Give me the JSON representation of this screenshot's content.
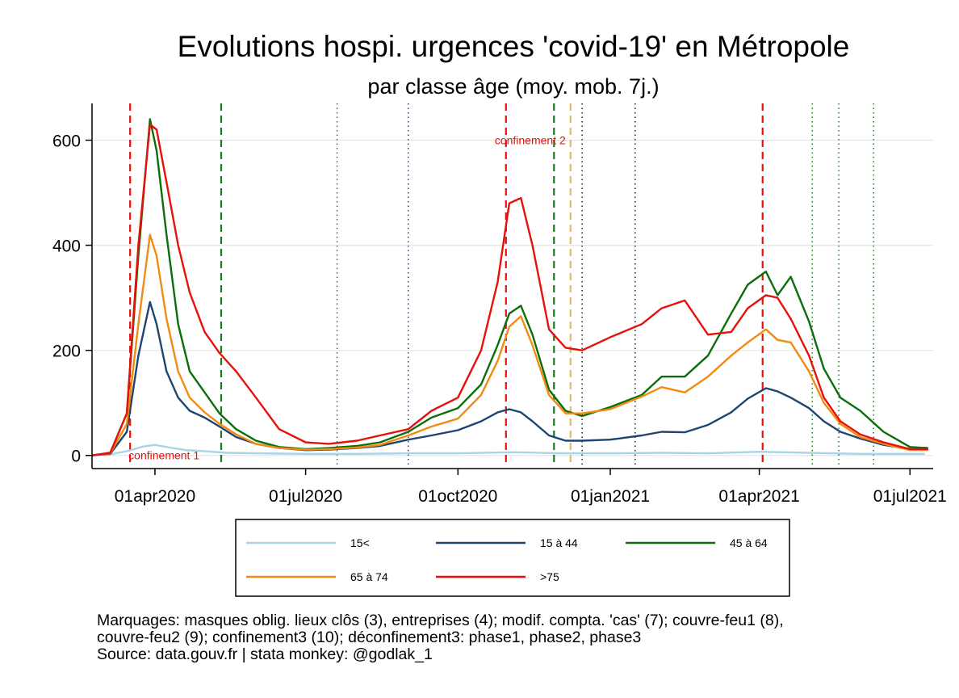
{
  "chart_data": {
    "type": "line",
    "title": "Evolutions hospi. urgences 'covid-19' en Métropole",
    "subtitle": "par classe âge (moy. mob. 7j.)",
    "ylim": [
      -25,
      670
    ],
    "yticks": [
      0,
      200,
      400,
      600
    ],
    "x_range": [
      "2020-02-23",
      "2021-07-15"
    ],
    "xticks": [
      "2020-04-01",
      "2020-07-01",
      "2020-10-01",
      "2021-01-01",
      "2021-04-01",
      "2021-07-01"
    ],
    "xtick_labels": [
      "01apr2020",
      "01jul2020",
      "01oct2020",
      "01jan2021",
      "01apr2021",
      "01jul2021"
    ],
    "grid": true,
    "legend_position": "bottom",
    "vlines": [
      {
        "date": "2020-03-17",
        "color": "#e8100a",
        "style": "dashed"
      },
      {
        "date": "2020-05-11",
        "color": "#1a7a1a",
        "style": "dashed"
      },
      {
        "date": "2020-07-20",
        "color": "#555577",
        "style": "dotted"
      },
      {
        "date": "2020-09-01",
        "color": "#3333aa",
        "style": "dotted"
      },
      {
        "date": "2020-10-30",
        "color": "#e8100a",
        "style": "dashed"
      },
      {
        "date": "2020-11-28",
        "color": "#1a7a1a",
        "style": "dashed"
      },
      {
        "date": "2020-12-08",
        "color": "#e0bb66",
        "style": "dashed"
      },
      {
        "date": "2020-12-15",
        "color": "#222222",
        "style": "dotted"
      },
      {
        "date": "2021-01-16",
        "color": "#222222",
        "style": "dotted"
      },
      {
        "date": "2021-04-03",
        "color": "#e8100a",
        "style": "dashed"
      },
      {
        "date": "2021-05-03",
        "color": "#1a7a1a",
        "style": "dotted"
      },
      {
        "date": "2021-05-19",
        "color": "#1a7a1a",
        "style": "dotted"
      },
      {
        "date": "2021-06-09",
        "color": "#1a7a1a",
        "style": "dotted"
      }
    ],
    "annotations": [
      {
        "text": "confinement 1",
        "date": "2020-03-17",
        "y": 0
      },
      {
        "text": "confinement 2",
        "date": "2020-10-30",
        "y": 600
      }
    ],
    "series": [
      {
        "name": "15<",
        "color": "#a8d4e6",
        "points": [
          [
            "2020-02-23",
            0
          ],
          [
            "2020-03-05",
            2
          ],
          [
            "2020-03-15",
            8
          ],
          [
            "2020-03-25",
            17
          ],
          [
            "2020-04-01",
            20
          ],
          [
            "2020-04-10",
            15
          ],
          [
            "2020-04-20",
            10
          ],
          [
            "2020-05-01",
            8
          ],
          [
            "2020-05-15",
            5
          ],
          [
            "2020-06-01",
            4
          ],
          [
            "2020-07-01",
            3
          ],
          [
            "2020-08-01",
            3
          ],
          [
            "2020-09-01",
            4
          ],
          [
            "2020-10-01",
            4
          ],
          [
            "2020-11-05",
            6
          ],
          [
            "2020-12-01",
            4
          ],
          [
            "2021-01-01",
            4
          ],
          [
            "2021-02-01",
            5
          ],
          [
            "2021-03-01",
            4
          ],
          [
            "2021-04-01",
            7
          ],
          [
            "2021-05-01",
            5
          ],
          [
            "2021-06-01",
            3
          ],
          [
            "2021-07-10",
            3
          ]
        ]
      },
      {
        "name": "15 à 44",
        "color": "#1f4470",
        "points": [
          [
            "2020-02-23",
            0
          ],
          [
            "2020-03-05",
            3
          ],
          [
            "2020-03-15",
            45
          ],
          [
            "2020-03-22",
            190
          ],
          [
            "2020-03-29",
            292
          ],
          [
            "2020-04-02",
            250
          ],
          [
            "2020-04-08",
            160
          ],
          [
            "2020-04-15",
            110
          ],
          [
            "2020-04-22",
            85
          ],
          [
            "2020-05-01",
            72
          ],
          [
            "2020-05-10",
            55
          ],
          [
            "2020-05-20",
            35
          ],
          [
            "2020-06-01",
            22
          ],
          [
            "2020-06-15",
            14
          ],
          [
            "2020-07-01",
            10
          ],
          [
            "2020-07-15",
            11
          ],
          [
            "2020-08-01",
            14
          ],
          [
            "2020-08-15",
            18
          ],
          [
            "2020-09-01",
            30
          ],
          [
            "2020-09-15",
            38
          ],
          [
            "2020-10-01",
            48
          ],
          [
            "2020-10-15",
            65
          ],
          [
            "2020-10-25",
            82
          ],
          [
            "2020-11-01",
            88
          ],
          [
            "2020-11-08",
            82
          ],
          [
            "2020-11-15",
            65
          ],
          [
            "2020-11-25",
            38
          ],
          [
            "2020-12-05",
            28
          ],
          [
            "2020-12-15",
            28
          ],
          [
            "2021-01-01",
            30
          ],
          [
            "2021-01-20",
            38
          ],
          [
            "2021-02-01",
            45
          ],
          [
            "2021-02-15",
            44
          ],
          [
            "2021-03-01",
            58
          ],
          [
            "2021-03-15",
            82
          ],
          [
            "2021-03-25",
            108
          ],
          [
            "2021-04-05",
            128
          ],
          [
            "2021-04-12",
            122
          ],
          [
            "2021-04-20",
            110
          ],
          [
            "2021-05-01",
            90
          ],
          [
            "2021-05-10",
            65
          ],
          [
            "2021-05-20",
            45
          ],
          [
            "2021-06-01",
            32
          ],
          [
            "2021-06-15",
            20
          ],
          [
            "2021-07-01",
            12
          ],
          [
            "2021-07-12",
            12
          ]
        ]
      },
      {
        "name": "45 à 64",
        "color": "#0b6e0b",
        "points": [
          [
            "2020-02-23",
            0
          ],
          [
            "2020-03-05",
            5
          ],
          [
            "2020-03-15",
            80
          ],
          [
            "2020-03-22",
            380
          ],
          [
            "2020-03-29",
            640
          ],
          [
            "2020-04-02",
            580
          ],
          [
            "2020-04-08",
            420
          ],
          [
            "2020-04-15",
            250
          ],
          [
            "2020-04-22",
            160
          ],
          [
            "2020-05-01",
            120
          ],
          [
            "2020-05-10",
            80
          ],
          [
            "2020-05-20",
            50
          ],
          [
            "2020-06-01",
            28
          ],
          [
            "2020-06-15",
            16
          ],
          [
            "2020-07-01",
            12
          ],
          [
            "2020-07-15",
            14
          ],
          [
            "2020-08-01",
            18
          ],
          [
            "2020-08-15",
            25
          ],
          [
            "2020-09-01",
            45
          ],
          [
            "2020-09-15",
            72
          ],
          [
            "2020-10-01",
            90
          ],
          [
            "2020-10-15",
            135
          ],
          [
            "2020-10-25",
            210
          ],
          [
            "2020-11-01",
            270
          ],
          [
            "2020-11-08",
            285
          ],
          [
            "2020-11-15",
            230
          ],
          [
            "2020-11-25",
            125
          ],
          [
            "2020-12-05",
            85
          ],
          [
            "2020-12-15",
            75
          ],
          [
            "2021-01-01",
            92
          ],
          [
            "2021-01-20",
            115
          ],
          [
            "2021-02-01",
            150
          ],
          [
            "2021-02-15",
            150
          ],
          [
            "2021-03-01",
            190
          ],
          [
            "2021-03-15",
            270
          ],
          [
            "2021-03-25",
            325
          ],
          [
            "2021-04-05",
            350
          ],
          [
            "2021-04-12",
            305
          ],
          [
            "2021-04-20",
            340
          ],
          [
            "2021-05-01",
            255
          ],
          [
            "2021-05-10",
            165
          ],
          [
            "2021-05-20",
            110
          ],
          [
            "2021-06-01",
            85
          ],
          [
            "2021-06-15",
            45
          ],
          [
            "2021-07-01",
            16
          ],
          [
            "2021-07-12",
            14
          ]
        ]
      },
      {
        "name": "65 à 74",
        "color": "#f28b12",
        "points": [
          [
            "2020-02-23",
            0
          ],
          [
            "2020-03-05",
            4
          ],
          [
            "2020-03-15",
            60
          ],
          [
            "2020-03-22",
            250
          ],
          [
            "2020-03-29",
            420
          ],
          [
            "2020-04-02",
            380
          ],
          [
            "2020-04-08",
            260
          ],
          [
            "2020-04-15",
            160
          ],
          [
            "2020-04-22",
            110
          ],
          [
            "2020-05-01",
            82
          ],
          [
            "2020-05-10",
            60
          ],
          [
            "2020-05-20",
            40
          ],
          [
            "2020-06-01",
            22
          ],
          [
            "2020-06-15",
            14
          ],
          [
            "2020-07-01",
            11
          ],
          [
            "2020-07-15",
            12
          ],
          [
            "2020-08-01",
            15
          ],
          [
            "2020-08-15",
            20
          ],
          [
            "2020-09-01",
            38
          ],
          [
            "2020-09-15",
            55
          ],
          [
            "2020-10-01",
            70
          ],
          [
            "2020-10-15",
            115
          ],
          [
            "2020-10-25",
            180
          ],
          [
            "2020-11-01",
            245
          ],
          [
            "2020-11-08",
            265
          ],
          [
            "2020-11-15",
            210
          ],
          [
            "2020-11-25",
            115
          ],
          [
            "2020-12-05",
            80
          ],
          [
            "2020-12-15",
            80
          ],
          [
            "2021-01-01",
            88
          ],
          [
            "2021-01-20",
            112
          ],
          [
            "2021-02-01",
            130
          ],
          [
            "2021-02-15",
            120
          ],
          [
            "2021-03-01",
            150
          ],
          [
            "2021-03-15",
            190
          ],
          [
            "2021-03-25",
            215
          ],
          [
            "2021-04-05",
            240
          ],
          [
            "2021-04-12",
            220
          ],
          [
            "2021-04-20",
            215
          ],
          [
            "2021-05-01",
            160
          ],
          [
            "2021-05-10",
            100
          ],
          [
            "2021-05-20",
            60
          ],
          [
            "2021-06-01",
            35
          ],
          [
            "2021-06-15",
            22
          ],
          [
            "2021-07-01",
            10
          ],
          [
            "2021-07-12",
            10
          ]
        ]
      },
      {
        "name": ">75",
        "color": "#e8100a",
        "points": [
          [
            "2020-02-23",
            0
          ],
          [
            "2020-03-05",
            5
          ],
          [
            "2020-03-15",
            80
          ],
          [
            "2020-03-22",
            400
          ],
          [
            "2020-03-29",
            630
          ],
          [
            "2020-04-02",
            620
          ],
          [
            "2020-04-08",
            520
          ],
          [
            "2020-04-15",
            400
          ],
          [
            "2020-04-22",
            310
          ],
          [
            "2020-05-01",
            235
          ],
          [
            "2020-05-10",
            195
          ],
          [
            "2020-05-20",
            160
          ],
          [
            "2020-06-01",
            110
          ],
          [
            "2020-06-15",
            50
          ],
          [
            "2020-07-01",
            25
          ],
          [
            "2020-07-15",
            22
          ],
          [
            "2020-08-01",
            28
          ],
          [
            "2020-08-15",
            38
          ],
          [
            "2020-09-01",
            50
          ],
          [
            "2020-09-15",
            85
          ],
          [
            "2020-10-01",
            110
          ],
          [
            "2020-10-15",
            200
          ],
          [
            "2020-10-25",
            330
          ],
          [
            "2020-11-01",
            480
          ],
          [
            "2020-11-08",
            490
          ],
          [
            "2020-11-15",
            400
          ],
          [
            "2020-11-25",
            240
          ],
          [
            "2020-12-05",
            205
          ],
          [
            "2020-12-15",
            200
          ],
          [
            "2021-01-01",
            225
          ],
          [
            "2021-01-20",
            250
          ],
          [
            "2021-02-01",
            280
          ],
          [
            "2021-02-15",
            295
          ],
          [
            "2021-03-01",
            230
          ],
          [
            "2021-03-15",
            235
          ],
          [
            "2021-03-25",
            280
          ],
          [
            "2021-04-05",
            305
          ],
          [
            "2021-04-12",
            300
          ],
          [
            "2021-04-20",
            260
          ],
          [
            "2021-05-01",
            190
          ],
          [
            "2021-05-10",
            110
          ],
          [
            "2021-05-20",
            65
          ],
          [
            "2021-06-01",
            40
          ],
          [
            "2021-06-15",
            25
          ],
          [
            "2021-07-01",
            12
          ],
          [
            "2021-07-12",
            12
          ]
        ]
      }
    ]
  },
  "notes": [
    "Marquages: masques oblig. lieux clôs (3), entreprises (4); modif. compta. 'cas' (7); couvre-feu1 (8),",
    "couvre-feu2 (9); confinement3 (10); déconfinement3: phase1, phase2, phase3",
    "Source: data.gouv.fr | stata monkey: @godlak_1"
  ]
}
